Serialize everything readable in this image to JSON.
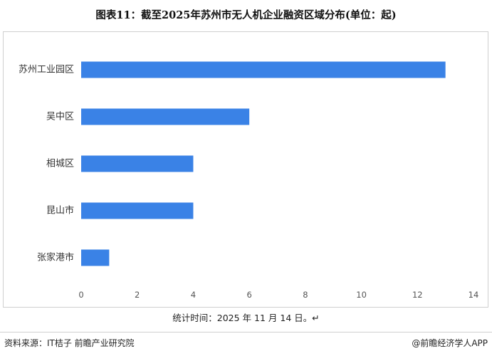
{
  "page": {
    "title": "图表11：截至2025年苏州市无人机企业融资区域分布(单位：起)",
    "footnote": "统计时间：2025 年 11 月 14 日。↵",
    "source": "资料来源：IT桔子 前瞻产业研究院",
    "credit": "@前瞻经济学人APP"
  },
  "chart_data": {
    "type": "bar",
    "orientation": "horizontal",
    "categories": [
      "苏州工业园区",
      "吴中区",
      "相城区",
      "昆山市",
      "张家港市"
    ],
    "values": [
      13,
      6,
      4,
      4,
      1
    ],
    "title": "图表11：截至2025年苏州市无人机企业融资区域分布(单位：起)",
    "xlabel": "",
    "ylabel": "",
    "xlim": [
      0,
      14
    ],
    "xticks": [
      "0",
      "2",
      "4",
      "6",
      "8",
      "10",
      "12",
      "14"
    ],
    "grid": false,
    "legend": "none",
    "bar_color": "#3a82e6"
  }
}
